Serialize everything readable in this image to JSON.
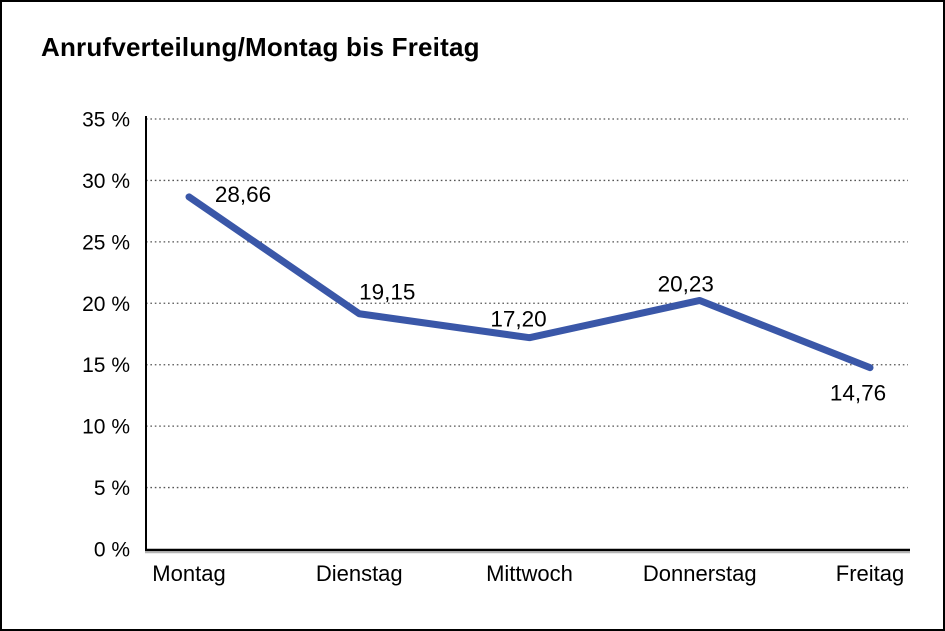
{
  "title": "Anrufverteilung/Montag bis Freitag",
  "chart_data": {
    "type": "line",
    "title": "Anrufverteilung/Montag bis Freitag",
    "categories": [
      "Montag",
      "Dienstag",
      "Mittwoch",
      "Donnerstag",
      "Freitag"
    ],
    "values": [
      28.66,
      19.15,
      17.2,
      20.23,
      14.76
    ],
    "value_labels": [
      "28,66",
      "19,15",
      "17,20",
      "20,23",
      "14,76"
    ],
    "xlabel": "",
    "ylabel": "",
    "ylim": [
      0,
      35
    ],
    "y_ticks": [
      0,
      5,
      10,
      15,
      20,
      25,
      30,
      35
    ],
    "y_tick_labels": [
      "0 %",
      "5 %",
      "10 %",
      "15 %",
      "20 %",
      "25 %",
      "30 %",
      "35 %"
    ],
    "grid": "horizontal-dotted",
    "legend": "none",
    "line_color": "#3A57A8",
    "axis_color": "#000000",
    "gridline_color": "#555555"
  }
}
